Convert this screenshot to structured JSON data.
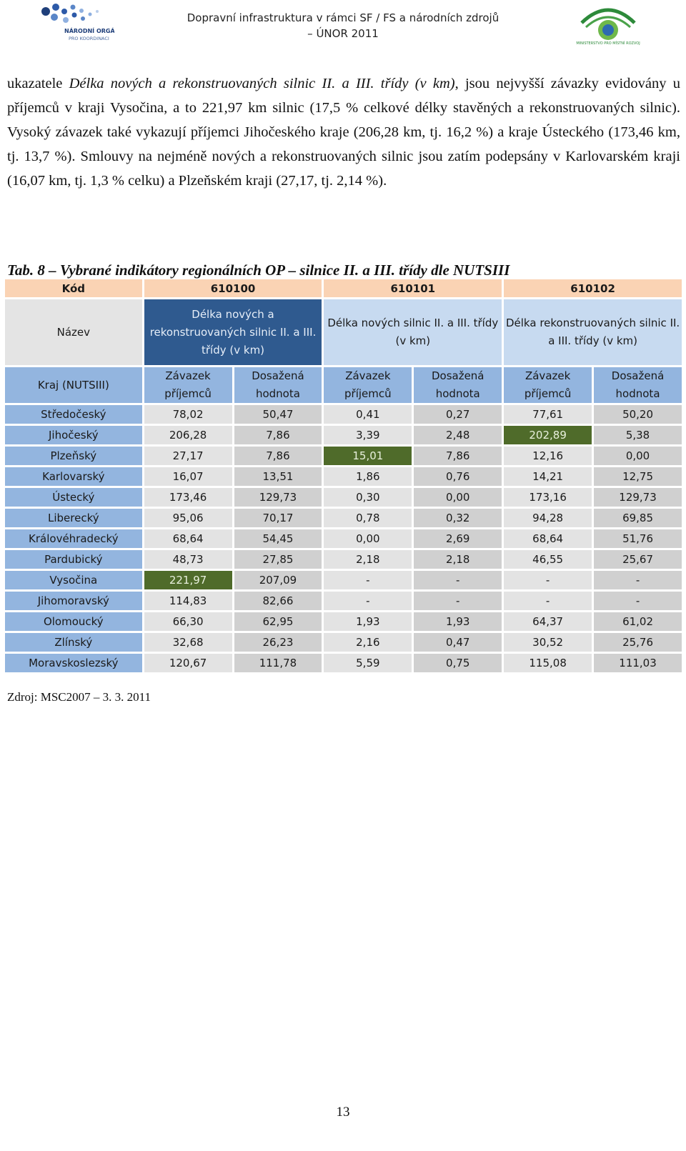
{
  "header": {
    "title_line1": "Dopravní infrastruktura v rámci SF / FS a národních zdrojů",
    "title_line2": "– ÚNOR 2011",
    "logo_left_text1": "NÁRODNÍ ORGÁN",
    "logo_left_text2": "PRO KOORDINACI",
    "logo_right_text": "MINISTERSTVO PRO MÍSTNÍ ROZVOJ",
    "logo_left_icon": "dots-logo-icon",
    "logo_right_icon": "ministry-logo-icon"
  },
  "paragraph": {
    "p1": "ukazatele ",
    "p1_italic": "Délka nových a rekonstruovaných silnic II. a III. třídy (v km)",
    "p2": ", jsou nejvyšší závazky evidovány u příjemců v kraji Vysočina, a to 221,97 km silnic (17,5 % celkové délky stavěných a rekonstruovaných silnic). Vysoký závazek také vykazují příjemci Jihočeského kraje (206,28 km, tj. 16,2 %) a kraje Ústeckého (173,46 km, tj. 13,7 %). Smlouvy na nejméně nových a rekonstruovaných silnic jsou zatím podepsány v Karlovarském kraji (16,07 km, tj. 1,3 % celku) a Plzeňském kraji (27,17, tj. 2,14 %)."
  },
  "caption": "Tab. 8 – Vybrané indikátory regionálních OP – silnice II. a III. třídy dle NUTSIII",
  "table": {
    "code_label": "Kód",
    "codes": [
      "610100",
      "610101",
      "610102"
    ],
    "name_label": "Název",
    "names": [
      "Délka nových a rekonstruovaných silnic II. a III. třídy (v km)",
      "Délka nových silnic II. a III. třídy (v km)",
      "Délka rekonstruovaných silnic II. a III. třídy (v km)"
    ],
    "region_label": "Kraj (NUTSIII)",
    "sub_a": "Závazek příjemců",
    "sub_b": "Dosažená hodnota",
    "rows": [
      {
        "kraj": "Středočeský",
        "v": [
          "78,02",
          "50,47",
          "0,41",
          "0,27",
          "77,61",
          "50,20"
        ]
      },
      {
        "kraj": "Jihočeský",
        "v": [
          "206,28",
          "7,86",
          "3,39",
          "2,48",
          "202,89",
          "5,38"
        ]
      },
      {
        "kraj": "Plzeňský",
        "v": [
          "27,17",
          "7,86",
          "15,01",
          "7,86",
          "12,16",
          "0,00"
        ]
      },
      {
        "kraj": "Karlovarský",
        "v": [
          "16,07",
          "13,51",
          "1,86",
          "0,76",
          "14,21",
          "12,75"
        ]
      },
      {
        "kraj": "Ústecký",
        "v": [
          "173,46",
          "129,73",
          "0,30",
          "0,00",
          "173,16",
          "129,73"
        ]
      },
      {
        "kraj": "Liberecký",
        "v": [
          "95,06",
          "70,17",
          "0,78",
          "0,32",
          "94,28",
          "69,85"
        ]
      },
      {
        "kraj": "Královéhradecký",
        "v": [
          "68,64",
          "54,45",
          "0,00",
          "2,69",
          "68,64",
          "51,76"
        ]
      },
      {
        "kraj": "Pardubický",
        "v": [
          "48,73",
          "27,85",
          "2,18",
          "2,18",
          "46,55",
          "25,67"
        ]
      },
      {
        "kraj": "Vysočina",
        "v": [
          "221,97",
          "207,09",
          "-",
          "-",
          "-",
          "-"
        ]
      },
      {
        "kraj": "Jihomoravský",
        "v": [
          "114,83",
          "82,66",
          "-",
          "-",
          "-",
          "-"
        ]
      },
      {
        "kraj": "Olomoucký",
        "v": [
          "66,30",
          "62,95",
          "1,93",
          "1,93",
          "64,37",
          "61,02"
        ]
      },
      {
        "kraj": "Zlínský",
        "v": [
          "32,68",
          "26,23",
          "2,16",
          "0,47",
          "30,52",
          "25,76"
        ]
      },
      {
        "kraj": "Moravskoslezský",
        "v": [
          "120,67",
          "111,78",
          "5,59",
          "0,75",
          "115,08",
          "111,03"
        ]
      }
    ],
    "highlight_color": "#4f6b2a"
  },
  "source": "Zdroj: MSC2007 – 3. 3. 2011",
  "page_number": "13"
}
